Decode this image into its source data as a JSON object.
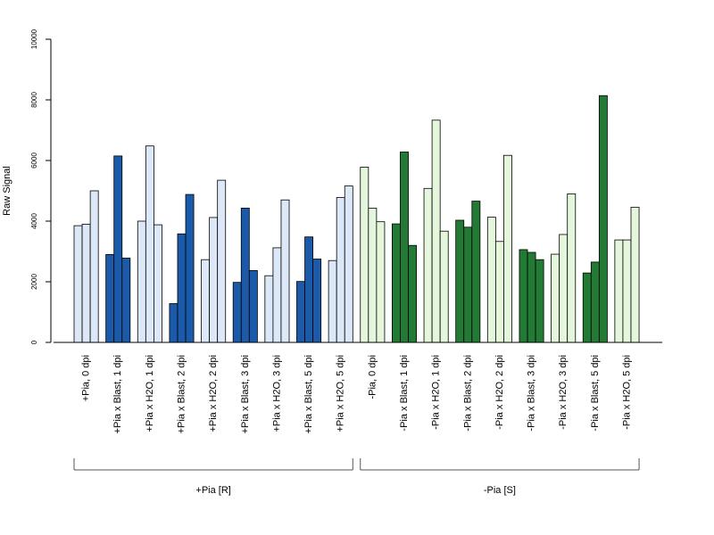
{
  "colors": {
    "blue_light": "#dce8f7",
    "blue_dark": "#1a5aa8",
    "green_light": "#e4f6dc",
    "green_dark": "#237a35",
    "border": "#000000"
  },
  "chart_data": {
    "type": "bar",
    "ylabel": "Raw Signal",
    "ylim": [
      0,
      10000
    ],
    "yticks": [
      0,
      2000,
      4000,
      6000,
      8000,
      10000
    ],
    "bars_per_category": 3,
    "categories": [
      {
        "label": "+Pia, 0 dpi",
        "values": [
          3850,
          3900,
          5000
        ],
        "color": "blue_light"
      },
      {
        "label": "+Pia x Blast, 1 dpi",
        "values": [
          2900,
          6150,
          2780
        ],
        "color": "blue_dark"
      },
      {
        "label": "+Pia x H2O, 1 dpi",
        "values": [
          4000,
          6480,
          3880
        ],
        "color": "blue_light"
      },
      {
        "label": "+Pia x Blast, 2 dpi",
        "values": [
          1280,
          3580,
          4880
        ],
        "color": "blue_dark"
      },
      {
        "label": "+Pia x H2O, 2 dpi",
        "values": [
          2730,
          4120,
          5350
        ],
        "color": "blue_light"
      },
      {
        "label": "+Pia x Blast, 3 dpi",
        "values": [
          1980,
          4430,
          2370
        ],
        "color": "blue_dark"
      },
      {
        "label": "+Pia x H2O, 3 dpi",
        "values": [
          2200,
          3120,
          4700
        ],
        "color": "blue_light"
      },
      {
        "label": "+Pia x Blast, 5 dpi",
        "values": [
          2010,
          3480,
          2750
        ],
        "color": "blue_dark"
      },
      {
        "label": "+Pia x H2O, 5 dpi",
        "values": [
          2700,
          4780,
          5160
        ],
        "color": "blue_light"
      },
      {
        "label": "-Pia, 0 dpi",
        "values": [
          5780,
          4430,
          3980
        ],
        "color": "green_light"
      },
      {
        "label": "-Pia x Blast, 1 dpi",
        "values": [
          3910,
          6280,
          3200
        ],
        "color": "green_dark"
      },
      {
        "label": "-Pia x H2O, 1 dpi",
        "values": [
          5080,
          7330,
          3670
        ],
        "color": "green_light"
      },
      {
        "label": "-Pia x Blast, 2 dpi",
        "values": [
          4030,
          3800,
          4660
        ],
        "color": "green_dark"
      },
      {
        "label": "-Pia x H2O, 2 dpi",
        "values": [
          4130,
          3330,
          6170
        ],
        "color": "green_light"
      },
      {
        "label": "-Pia x Blast, 3 dpi",
        "values": [
          3060,
          2970,
          2730
        ],
        "color": "green_dark"
      },
      {
        "label": "-Pia x H2O, 3 dpi",
        "values": [
          2910,
          3560,
          4900
        ],
        "color": "green_light"
      },
      {
        "label": "-Pia x Blast, 5 dpi",
        "values": [
          2290,
          2650,
          8140
        ],
        "color": "green_dark"
      },
      {
        "label": "-Pia x H2O, 5 dpi",
        "values": [
          3380,
          3380,
          4460
        ],
        "color": "green_light"
      }
    ],
    "groups": [
      {
        "label": "+Pia [R]",
        "first_category": 0,
        "last_category": 8
      },
      {
        "label": "-Pia [S]",
        "first_category": 9,
        "last_category": 17
      }
    ]
  }
}
